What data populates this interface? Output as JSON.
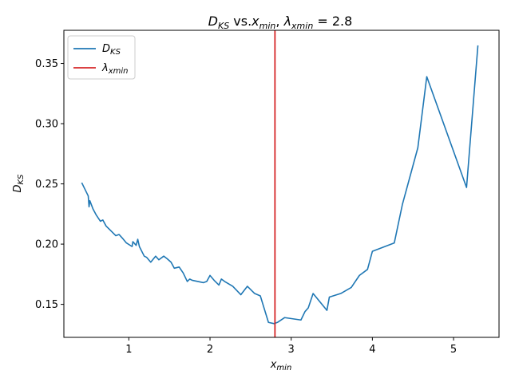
{
  "chart_data": {
    "type": "line",
    "title_parts": {
      "d": "D",
      "d_sub": "KS",
      "vs": " vs.",
      "x": "x",
      "x_sub": "min",
      "sep": ",  ",
      "lam": "λ",
      "lam_sub": "xmin",
      "eq": " = 2.8"
    },
    "xlabel": {
      "main": "x",
      "sub": "min"
    },
    "ylabel": {
      "main": "D",
      "sub": "KS"
    },
    "xlim": [
      0.2,
      5.56
    ],
    "ylim": [
      0.1226,
      0.3775
    ],
    "xticks": [
      1,
      2,
      3,
      4,
      5
    ],
    "xtick_labels": [
      "1",
      "2",
      "3",
      "4",
      "5"
    ],
    "yticks": [
      0.15,
      0.2,
      0.25,
      0.3,
      0.35
    ],
    "ytick_labels": [
      "0.15",
      "0.20",
      "0.25",
      "0.30",
      "0.35"
    ],
    "legend": {
      "position": "upper-left",
      "entries": [
        {
          "main": "D",
          "sub": "KS",
          "color": "#1f77b4"
        },
        {
          "main": "λ",
          "sub": "xmin",
          "color": "#d62728"
        }
      ]
    },
    "series": [
      {
        "name": "D_KS",
        "color": "#1f77b4",
        "x": [
          0.42,
          0.5,
          0.51,
          0.52,
          0.56,
          0.6,
          0.65,
          0.68,
          0.72,
          0.78,
          0.84,
          0.88,
          0.92,
          0.97,
          1.04,
          1.05,
          1.09,
          1.11,
          1.13,
          1.19,
          1.22,
          1.27,
          1.33,
          1.37,
          1.43,
          1.47,
          1.52,
          1.56,
          1.62,
          1.67,
          1.72,
          1.75,
          1.78,
          1.85,
          1.92,
          1.96,
          2.0,
          2.05,
          2.11,
          2.14,
          2.18,
          2.28,
          2.38,
          2.46,
          2.55,
          2.62,
          2.72,
          2.79,
          2.83,
          2.92,
          3.12,
          3.17,
          3.21,
          3.27,
          3.44,
          3.47,
          3.61,
          3.74,
          3.84,
          3.94,
          4.0,
          4.27,
          4.37,
          4.56,
          4.67,
          5.16,
          5.3
        ],
        "y": [
          0.251,
          0.24,
          0.231,
          0.236,
          0.229,
          0.224,
          0.219,
          0.22,
          0.215,
          0.211,
          0.207,
          0.208,
          0.205,
          0.201,
          0.198,
          0.202,
          0.199,
          0.204,
          0.198,
          0.19,
          0.189,
          0.185,
          0.19,
          0.187,
          0.19,
          0.188,
          0.185,
          0.18,
          0.181,
          0.176,
          0.169,
          0.171,
          0.17,
          0.169,
          0.168,
          0.169,
          0.174,
          0.17,
          0.166,
          0.171,
          0.169,
          0.165,
          0.158,
          0.165,
          0.159,
          0.157,
          0.135,
          0.134,
          0.135,
          0.139,
          0.137,
          0.144,
          0.147,
          0.159,
          0.145,
          0.156,
          0.159,
          0.164,
          0.174,
          0.179,
          0.194,
          0.201,
          0.233,
          0.28,
          0.339,
          0.247,
          0.365
        ]
      }
    ],
    "vline": {
      "name": "lambda_xmin",
      "x": 2.8,
      "color": "#d62728"
    }
  }
}
